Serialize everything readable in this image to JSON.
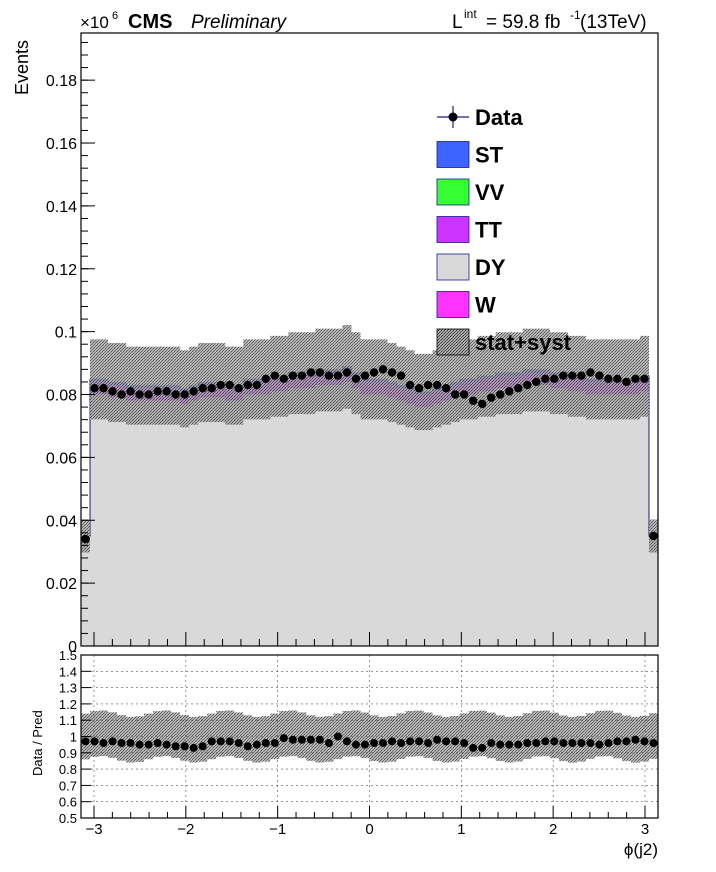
{
  "header": {
    "exponent_prefix": "×10",
    "exponent_power": "6",
    "experiment": "CMS",
    "status": "Preliminary",
    "lumi_symbol": "L",
    "lumi_sup": "int",
    "lumi_value": " = 59.8 fb",
    "lumi_unit_power": "-1",
    "lumi_energy": " (13TeV)"
  },
  "legend": [
    {
      "label": "Data",
      "kind": "marker",
      "color": "#000000"
    },
    {
      "label": "ST",
      "kind": "box",
      "color": "#3d63ff"
    },
    {
      "label": "VV",
      "kind": "box",
      "color": "#33ff33"
    },
    {
      "label": "TT",
      "kind": "box",
      "color": "#cc33ff"
    },
    {
      "label": "DY",
      "kind": "box",
      "color": "#d9d9d9"
    },
    {
      "label": "W",
      "kind": "box",
      "color": "#ff33ff"
    },
    {
      "label": "stat+syst",
      "kind": "hatch",
      "color": "#888888"
    }
  ],
  "chart_data": [
    {
      "type": "area",
      "ylabel": "Events",
      "xlim": [
        -3.1416,
        3.1416
      ],
      "ylim": [
        0,
        0.195
      ],
      "y_scale_note": "×10^6",
      "yticks": [
        0,
        0.02,
        0.04,
        0.06,
        0.08,
        0.1,
        0.12,
        0.14,
        0.16,
        0.18
      ],
      "ytick_labels": [
        "0",
        "0.02",
        "0.04",
        "0.06",
        "0.08",
        "0.1",
        "0.12",
        "0.14",
        "0.16",
        "0.18"
      ],
      "bins": 64,
      "series": [
        {
          "name": "DY",
          "color": "#d9d9d9",
          "values": [
            0.034,
            0.08,
            0.08,
            0.079,
            0.079,
            0.078,
            0.078,
            0.078,
            0.078,
            0.078,
            0.078,
            0.077,
            0.078,
            0.079,
            0.079,
            0.079,
            0.078,
            0.078,
            0.08,
            0.08,
            0.08,
            0.081,
            0.081,
            0.082,
            0.082,
            0.082,
            0.083,
            0.083,
            0.083,
            0.084,
            0.082,
            0.08,
            0.08,
            0.08,
            0.079,
            0.078,
            0.077,
            0.076,
            0.076,
            0.077,
            0.078,
            0.079,
            0.08,
            0.08,
            0.081,
            0.081,
            0.082,
            0.082,
            0.082,
            0.083,
            0.083,
            0.083,
            0.082,
            0.082,
            0.081,
            0.081,
            0.08,
            0.08,
            0.08,
            0.08,
            0.08,
            0.08,
            0.081,
            0.034
          ]
        },
        {
          "name": "TT",
          "color": "#cc33ff",
          "values": [
            0.0008,
            0.004,
            0.004,
            0.004,
            0.004,
            0.004,
            0.004,
            0.004,
            0.004,
            0.004,
            0.004,
            0.004,
            0.004,
            0.004,
            0.004,
            0.004,
            0.004,
            0.004,
            0.004,
            0.004,
            0.004,
            0.004,
            0.004,
            0.004,
            0.004,
            0.004,
            0.004,
            0.004,
            0.004,
            0.004,
            0.004,
            0.004,
            0.004,
            0.004,
            0.004,
            0.004,
            0.004,
            0.004,
            0.004,
            0.004,
            0.004,
            0.004,
            0.004,
            0.004,
            0.004,
            0.004,
            0.004,
            0.004,
            0.004,
            0.004,
            0.004,
            0.004,
            0.004,
            0.004,
            0.004,
            0.004,
            0.004,
            0.004,
            0.004,
            0.004,
            0.004,
            0.004,
            0.004,
            0.0008
          ]
        },
        {
          "name": "ST",
          "color": "#3d63ff",
          "values": [
            0.0002,
            0.0008,
            0.0008,
            0.0008,
            0.0008,
            0.0008,
            0.0008,
            0.0008,
            0.0008,
            0.0008,
            0.0008,
            0.0008,
            0.0008,
            0.0008,
            0.0008,
            0.0008,
            0.0008,
            0.0008,
            0.0008,
            0.0008,
            0.0008,
            0.0008,
            0.0008,
            0.0008,
            0.0008,
            0.0008,
            0.0008,
            0.0008,
            0.0008,
            0.0008,
            0.0008,
            0.0008,
            0.0008,
            0.0008,
            0.0008,
            0.0008,
            0.0008,
            0.0008,
            0.0008,
            0.0008,
            0.0008,
            0.0008,
            0.0008,
            0.0008,
            0.0008,
            0.0008,
            0.0008,
            0.0008,
            0.0008,
            0.0008,
            0.0008,
            0.0008,
            0.0008,
            0.0008,
            0.0008,
            0.0008,
            0.0008,
            0.0008,
            0.0008,
            0.0008,
            0.0008,
            0.0008,
            0.0008,
            0.0002
          ]
        }
      ],
      "data": {
        "name": "Data",
        "values": [
          0.034,
          0.082,
          0.082,
          0.081,
          0.08,
          0.081,
          0.08,
          0.08,
          0.081,
          0.081,
          0.08,
          0.08,
          0.081,
          0.082,
          0.082,
          0.083,
          0.083,
          0.082,
          0.083,
          0.083,
          0.085,
          0.086,
          0.085,
          0.086,
          0.086,
          0.087,
          0.087,
          0.086,
          0.086,
          0.087,
          0.085,
          0.086,
          0.087,
          0.088,
          0.087,
          0.086,
          0.083,
          0.082,
          0.083,
          0.083,
          0.082,
          0.08,
          0.08,
          0.078,
          0.077,
          0.079,
          0.08,
          0.081,
          0.082,
          0.083,
          0.084,
          0.085,
          0.085,
          0.086,
          0.086,
          0.086,
          0.087,
          0.086,
          0.085,
          0.085,
          0.084,
          0.085,
          0.085,
          0.035
        ]
      },
      "uncertainty_band": {
        "name": "stat+syst",
        "relative": 0.15
      }
    },
    {
      "type": "scatter",
      "xlabel": "ϕ(j2)",
      "ylabel": "Data / Pred",
      "xlim": [
        -3.1416,
        3.1416
      ],
      "ylim": [
        0.5,
        1.5
      ],
      "xticks": [
        -3,
        -2,
        -1,
        0,
        1,
        2,
        3
      ],
      "xtick_labels": [
        "−3",
        "−2",
        "−1",
        "0",
        "1",
        "2",
        "3"
      ],
      "yticks": [
        0.5,
        0.6,
        0.7,
        0.8,
        0.9,
        1.0,
        1.1,
        1.2,
        1.3,
        1.4,
        1.5
      ],
      "ytick_labels": [
        "0.5",
        "0.6",
        "0.7",
        "0.8",
        "0.9",
        "1",
        "1.1",
        "1.2",
        "1.3",
        "1.4",
        "1.5"
      ],
      "grid": true,
      "ratio": [
        0.97,
        0.97,
        0.96,
        0.97,
        0.96,
        0.96,
        0.95,
        0.95,
        0.96,
        0.95,
        0.94,
        0.94,
        0.93,
        0.94,
        0.97,
        0.97,
        0.97,
        0.96,
        0.94,
        0.95,
        0.96,
        0.96,
        0.99,
        0.98,
        0.98,
        0.98,
        0.98,
        0.96,
        1.0,
        0.97,
        0.95,
        0.95,
        0.96,
        0.96,
        0.97,
        0.96,
        0.97,
        0.97,
        0.96,
        0.98,
        0.97,
        0.97,
        0.96,
        0.93,
        0.93,
        0.96,
        0.95,
        0.95,
        0.95,
        0.96,
        0.96,
        0.97,
        0.97,
        0.96,
        0.96,
        0.96,
        0.96,
        0.95,
        0.96,
        0.97,
        0.97,
        0.98,
        0.97,
        0.96
      ],
      "band_relative": 0.14
    }
  ]
}
